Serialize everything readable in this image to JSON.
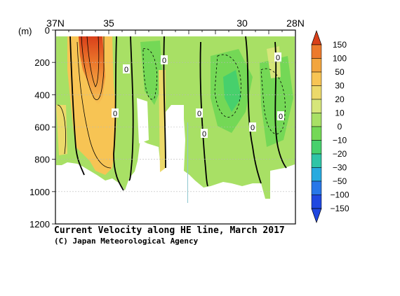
{
  "chart_data": {
    "type": "heatmap",
    "title": "Current Velocity along HE line, March 2017",
    "credit": "(C) Japan Meteorological Agency",
    "ylabel": "(m)",
    "x_ticks": [
      {
        "lat": 37,
        "label": "37N"
      },
      {
        "lat": 35,
        "label": "35"
      },
      {
        "lat": 30,
        "label": "30"
      },
      {
        "lat": 28,
        "label": "28N"
      }
    ],
    "xlim": [
      37,
      28
    ],
    "ylim": [
      0,
      1200
    ],
    "y_ticks": [
      0,
      200,
      400,
      600,
      800,
      1000,
      1200
    ],
    "y_tick_labels": [
      "0",
      "200",
      "400",
      "600",
      "800",
      "1000",
      "1200"
    ],
    "colorbar": {
      "labels": [
        "150",
        "100",
        "50",
        "30",
        "20",
        "10",
        "0",
        "−10",
        "−20",
        "−30",
        "−50",
        "−100",
        "−150"
      ],
      "colors": [
        "#d9401a",
        "#ec7a2c",
        "#f2a53e",
        "#f7c454",
        "#ecd96a",
        "#d6e67a",
        "#a8e065",
        "#74d856",
        "#47d06c",
        "#2fc4a6",
        "#27aadf",
        "#2877e8",
        "#2048e0"
      ]
    },
    "contour_labels": [
      "0",
      "0",
      "0",
      "0",
      "0",
      "0",
      "0",
      "0"
    ],
    "grid": true
  }
}
